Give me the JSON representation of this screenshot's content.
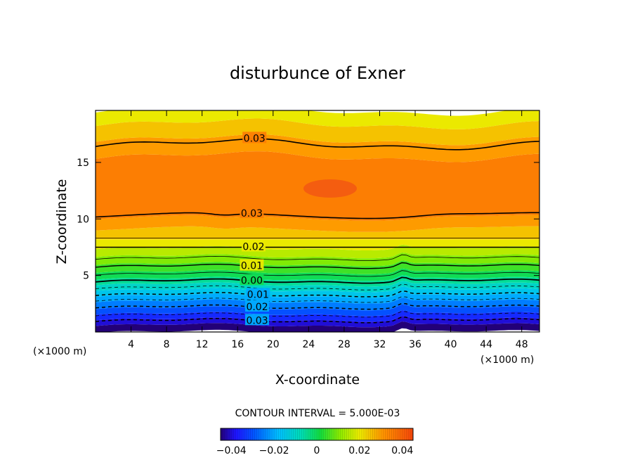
{
  "chart_data": {
    "type": "heatmap",
    "title": "disturbunce of Exner",
    "xlabel": "X-coordinate",
    "ylabel": "Z-coordinate",
    "x_unit": "(×1000 m)",
    "y_unit": "(×1000 m)",
    "xlim": [
      0,
      50
    ],
    "ylim": [
      0,
      19.6
    ],
    "x_ticks": [
      4,
      8,
      12,
      16,
      20,
      24,
      28,
      32,
      36,
      40,
      44,
      48
    ],
    "y_ticks": [
      5,
      10,
      15
    ],
    "contour_interval": "CONTOUR INTERVAL = 5.000E-03",
    "colorbar": {
      "range": [
        -0.045,
        0.045
      ],
      "ticks": [
        -0.04,
        -0.02,
        0,
        0.02,
        0.04
      ],
      "tick_labels": [
        "−0.04",
        "−0.02",
        "0",
        "0.02",
        "0.04"
      ]
    },
    "contour_labels": [
      {
        "text": "0.03",
        "x": 17.9,
        "z": 16.6
      },
      {
        "text": "0.03",
        "x": 17.6,
        "z": 10.3
      },
      {
        "text": "0.02",
        "x": 17.8,
        "z": 7.5
      },
      {
        "text": "0.01",
        "x": 17.6,
        "z": 5.8
      },
      {
        "text": "0.00",
        "x": 17.6,
        "z": 4.5
      },
      {
        "text": "0.01",
        "x": 18.3,
        "z": 3.3
      },
      {
        "text": "0.02",
        "x": 18.2,
        "z": 2.2
      },
      {
        "text": "0.03",
        "x": 18.2,
        "z": 1.0
      }
    ],
    "field_bands": [
      {
        "z": 0.0,
        "value": -0.045
      },
      {
        "z": 0.6,
        "value": -0.04
      },
      {
        "z": 1.1,
        "value": -0.035
      },
      {
        "z": 1.6,
        "value": -0.03
      },
      {
        "z": 2.1,
        "value": -0.025
      },
      {
        "z": 2.7,
        "value": -0.02
      },
      {
        "z": 3.2,
        "value": -0.015
      },
      {
        "z": 3.7,
        "value": -0.01
      },
      {
        "z": 4.2,
        "value": -0.005
      },
      {
        "z": 4.7,
        "value": 0.0
      },
      {
        "z": 5.3,
        "value": 0.005
      },
      {
        "z": 6.0,
        "value": 0.01
      },
      {
        "z": 6.7,
        "value": 0.015
      },
      {
        "z": 7.4,
        "value": 0.02
      },
      {
        "z": 8.2,
        "value": 0.025
      },
      {
        "z": 9.1,
        "value": 0.03
      },
      {
        "z": 10.1,
        "value": 0.035
      },
      {
        "z": 15.5,
        "value": 0.03
      },
      {
        "z": 17.0,
        "value": 0.025
      },
      {
        "z": 18.4,
        "value": 0.02
      }
    ]
  }
}
